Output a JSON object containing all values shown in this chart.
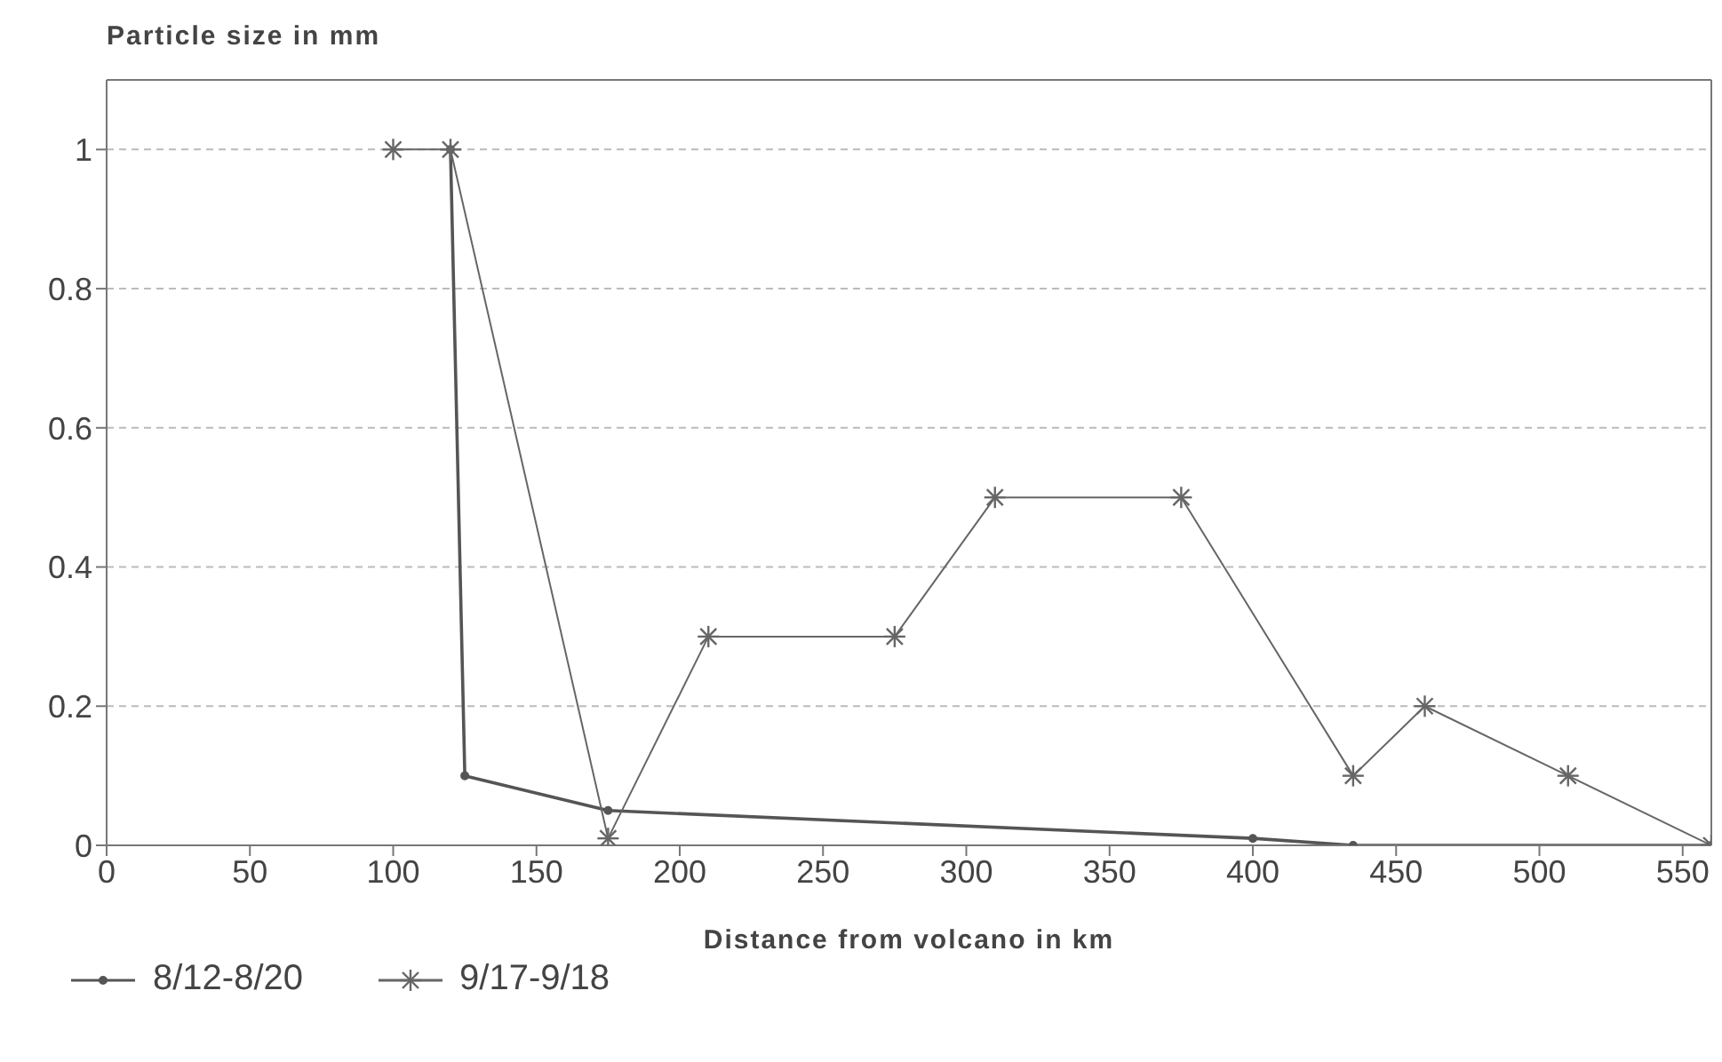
{
  "chart_data": {
    "type": "line",
    "ylabel": "Particle size in mm",
    "xlabel": "Distance from volcano in km",
    "xlim": [
      0,
      560
    ],
    "xticks": [
      0,
      50,
      100,
      150,
      200,
      250,
      300,
      350,
      400,
      450,
      500,
      550
    ],
    "ylim": [
      0,
      1.1
    ],
    "yticks": [
      0,
      0.2,
      0.4,
      0.6,
      0.8,
      1
    ],
    "grid": "y",
    "legend": "bottom",
    "line_style": "solid",
    "series": [
      {
        "name": "8/12-8/20",
        "color": "#555555",
        "marker": "circle",
        "x": [
          120,
          125,
          175,
          400,
          435,
          560
        ],
        "values": [
          1,
          0.1,
          0.05,
          0.01,
          0,
          0
        ]
      },
      {
        "name": "9/17-9/18",
        "color": "#666666",
        "marker": "cross",
        "x": [
          100,
          120,
          175,
          210,
          275,
          310,
          375,
          435,
          460,
          510,
          560
        ],
        "values": [
          1,
          1,
          0.01,
          0.3,
          0.3,
          0.5,
          0.5,
          0.1,
          0.2,
          0.1,
          0
        ]
      }
    ]
  }
}
